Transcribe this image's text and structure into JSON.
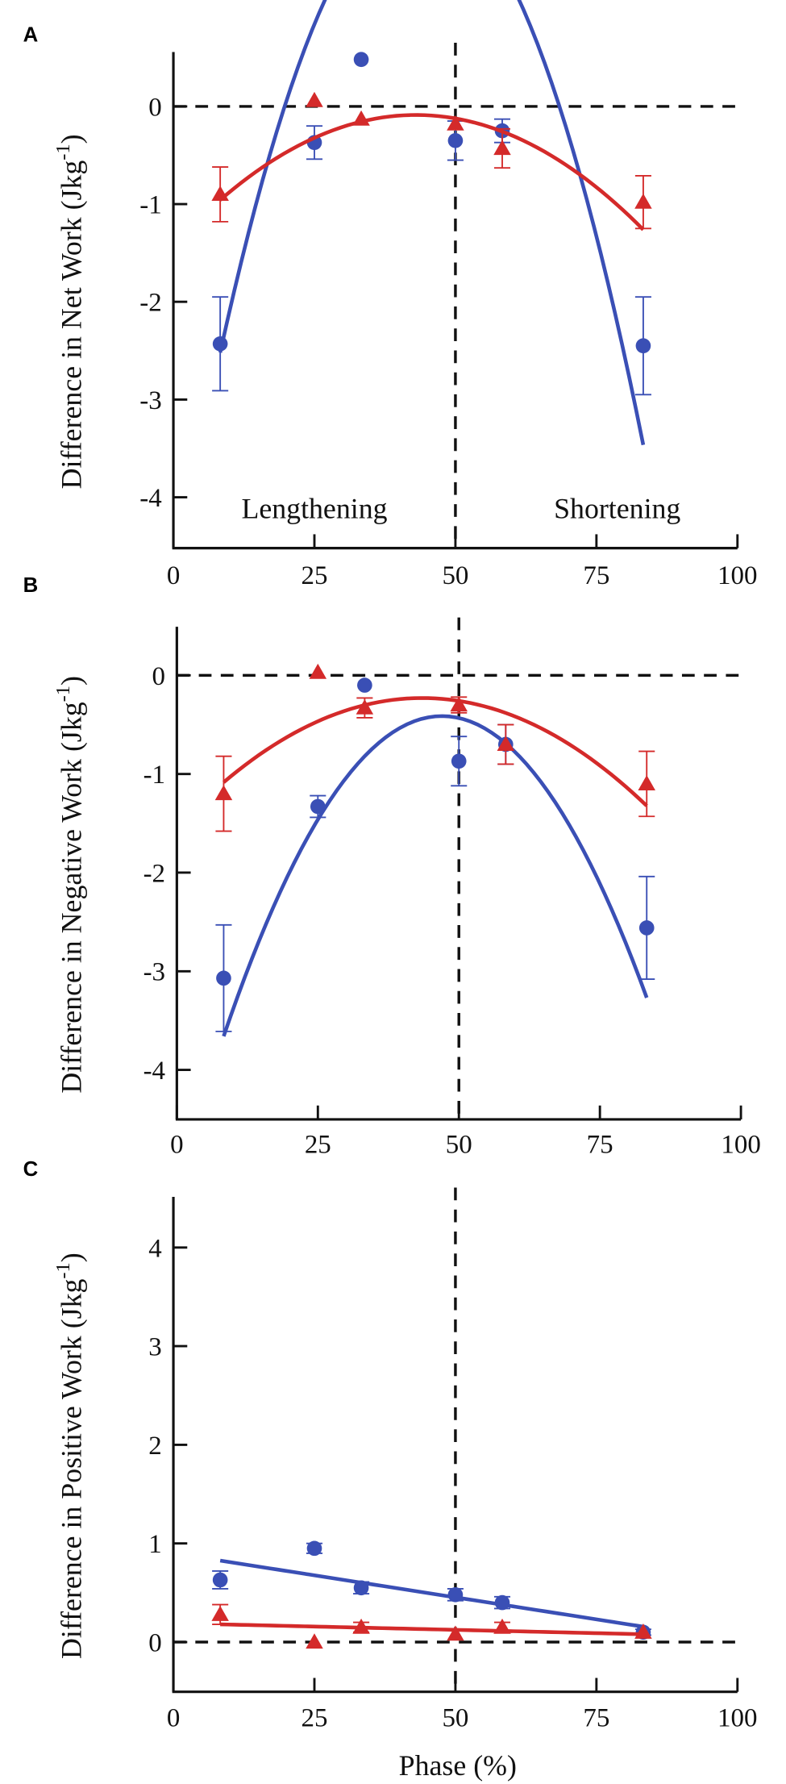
{
  "chart_data": [
    {
      "panel": "A",
      "type": "scatter",
      "ylabel": "Difference in Net Work (Jkg",
      "ylabel_unit_sup": "-1",
      "ylabel_close": ")",
      "xlabel": "",
      "xlim": [
        0,
        100
      ],
      "ylim": [
        -4.5,
        0.55
      ],
      "xticks": [
        0,
        25,
        50,
        75,
        100
      ],
      "yticks": [
        0,
        -1,
        -2,
        -3,
        -4
      ],
      "hline": 0,
      "vline": 50,
      "annotations": [
        "Lengthening",
        "Shortening"
      ],
      "series": [
        {
          "name": "circle",
          "color": "#3a4fb5",
          "marker": "circle",
          "x": [
            8.3,
            25,
            33.3,
            50,
            58.3,
            83.3
          ],
          "y": [
            -2.43,
            -0.37,
            0.48,
            -0.35,
            -0.25,
            -2.45
          ],
          "err": [
            0.48,
            0.17,
            0.0,
            0.2,
            0.12,
            0.5
          ],
          "fit": [
            -0.003667,
            0.3233,
            -4.95
          ]
        },
        {
          "name": "triangle",
          "color": "#d42a2a",
          "marker": "triangle",
          "x": [
            8.3,
            25,
            33.3,
            50,
            58.3,
            83.3
          ],
          "y": [
            -0.9,
            0.06,
            -0.13,
            -0.18,
            -0.43,
            -0.98
          ],
          "err": [
            0.28,
            0.0,
            0.0,
            0.0,
            0.2,
            0.27
          ],
          "fit": [
            -0.0007225,
            0.06214,
            -1.424
          ]
        }
      ]
    },
    {
      "panel": "B",
      "type": "scatter",
      "ylabel": "Difference in Negative Work (Jkg",
      "ylabel_unit_sup": "-1",
      "ylabel_close": ")",
      "xlabel": "",
      "xlim": [
        0,
        100
      ],
      "ylim": [
        -4.5,
        0.55
      ],
      "xticks": [
        0,
        25,
        50,
        75,
        100
      ],
      "yticks": [
        0,
        -1,
        -2,
        -3,
        -4
      ],
      "hline": 0,
      "vline": 50,
      "annotations": [],
      "series": [
        {
          "name": "circle",
          "color": "#3a4fb5",
          "marker": "circle",
          "x": [
            8.3,
            25,
            33.3,
            50,
            58.3,
            83.3
          ],
          "y": [
            -3.07,
            -1.33,
            -0.1,
            -0.87,
            -0.7,
            -2.56
          ],
          "err": [
            0.54,
            0.11,
            0.0,
            0.25,
            0.2,
            0.52
          ],
          "fit": [
            -0.002167,
            0.2037,
            -5.2
          ]
        },
        {
          "name": "triangle",
          "color": "#d42a2a",
          "marker": "triangle",
          "x": [
            8.3,
            25,
            33.3,
            50,
            58.3,
            83.3
          ],
          "y": [
            -1.2,
            0.03,
            -0.33,
            -0.3,
            -0.7,
            -1.1
          ],
          "err": [
            0.38,
            0.0,
            0.1,
            0.08,
            0.2,
            0.33
          ],
          "fit": [
            -0.0006897,
            0.06,
            -1.535
          ]
        }
      ]
    },
    {
      "panel": "C",
      "type": "scatter",
      "ylabel": "Difference in Positive Work (Jkg",
      "ylabel_unit_sup": "-1",
      "ylabel_close": ")",
      "xlabel": "Phase (%)",
      "xlim": [
        0,
        100
      ],
      "ylim": [
        -0.5,
        4.55
      ],
      "xticks": [
        0,
        25,
        50,
        75,
        100
      ],
      "yticks": [
        0,
        1,
        2,
        3,
        4
      ],
      "hline": 0,
      "vline": 50,
      "annotations": [],
      "series": [
        {
          "name": "circle",
          "color": "#3a4fb5",
          "marker": "circle",
          "x": [
            8.3,
            25,
            33.3,
            50,
            58.3,
            83.3
          ],
          "y": [
            0.63,
            0.95,
            0.55,
            0.48,
            0.4,
            0.1
          ],
          "err": [
            0.09,
            0.05,
            0.06,
            0.06,
            0.06,
            0.03
          ],
          "fit": [
            0,
            -0.00893,
            0.9
          ]
        },
        {
          "name": "triangle",
          "color": "#d42a2a",
          "marker": "triangle",
          "x": [
            8.3,
            25,
            33.3,
            50,
            58.3,
            83.3
          ],
          "y": [
            0.28,
            0.0,
            0.15,
            0.08,
            0.15,
            0.1
          ],
          "err": [
            0.1,
            0.0,
            0.05,
            0.0,
            0.05,
            0.0
          ],
          "fit": [
            0,
            -0.001341,
            0.191
          ]
        }
      ]
    }
  ]
}
